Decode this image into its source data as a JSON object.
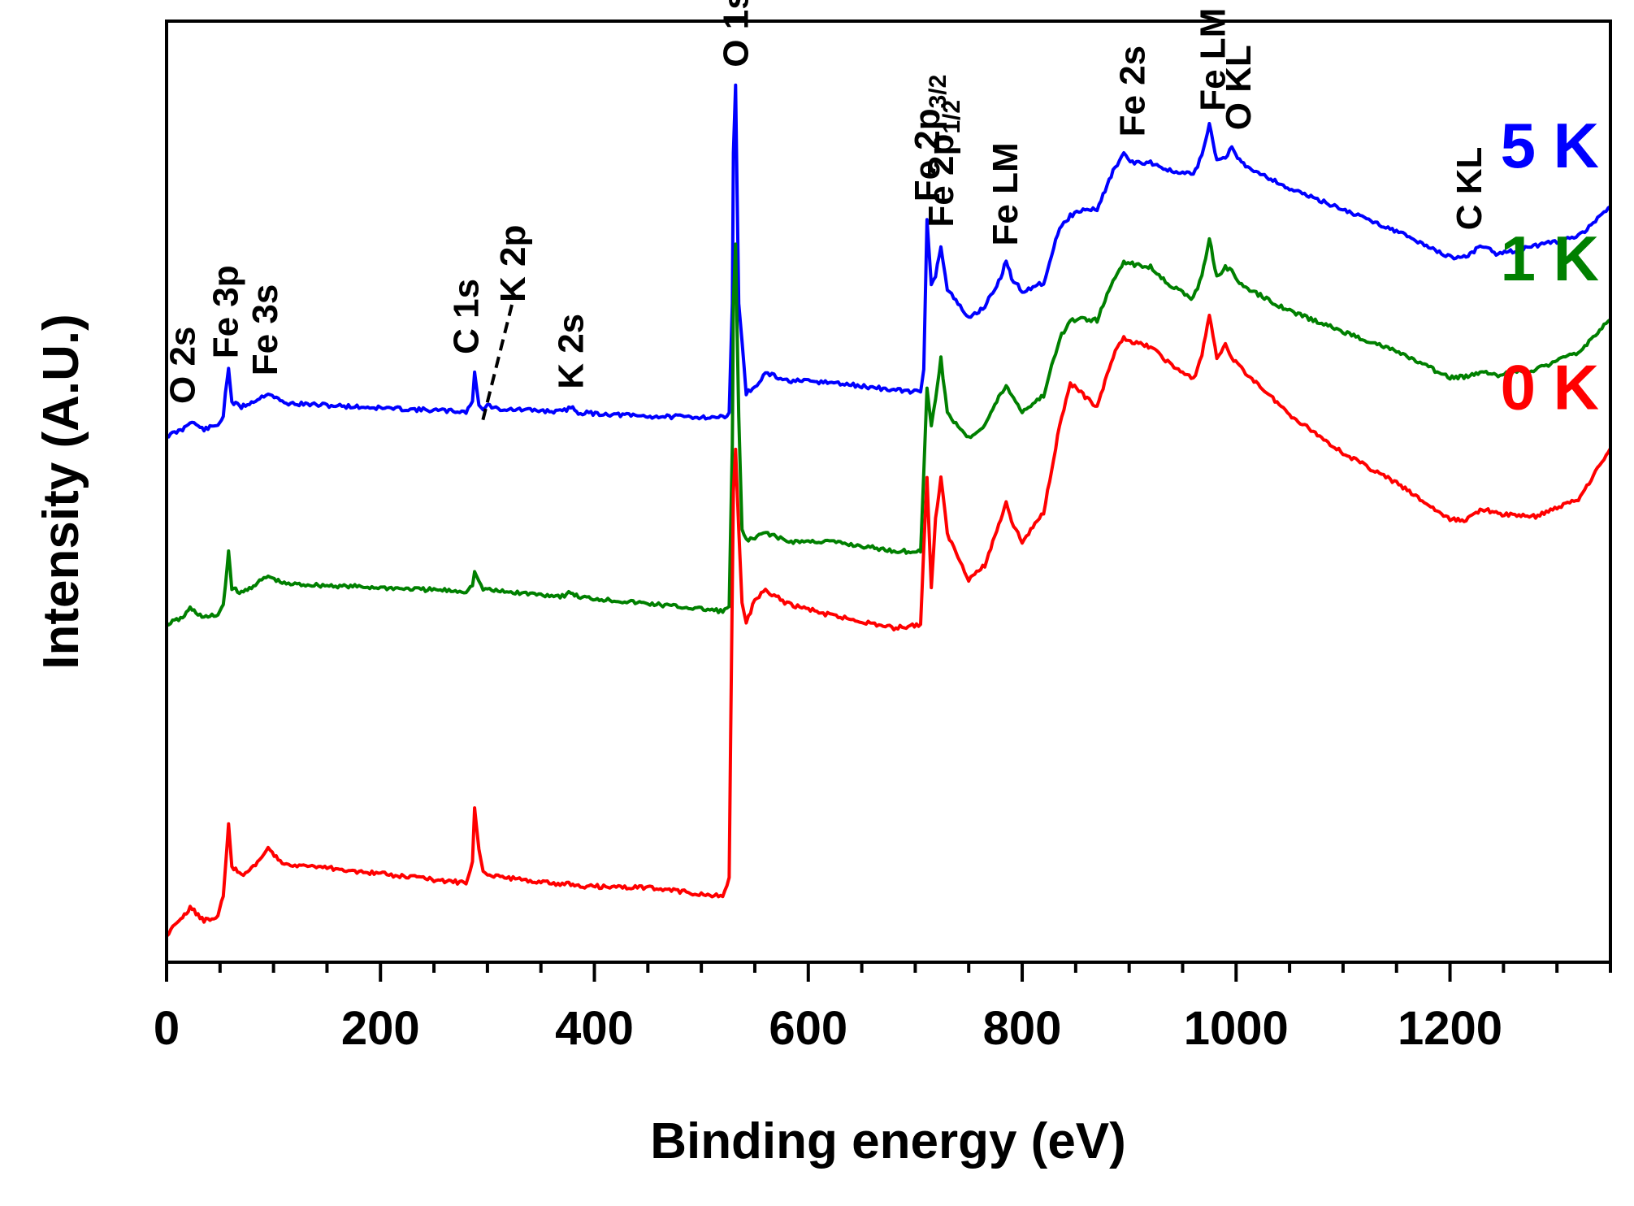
{
  "chart_data": {
    "type": "line",
    "title": "",
    "xlabel": "Binding energy (eV)",
    "ylabel": "Intensity (A.U.)",
    "xlim": [
      0,
      1350
    ],
    "ylim": [
      0,
      100
    ],
    "x_ticks": [
      0,
      200,
      400,
      600,
      800,
      1000,
      1200
    ],
    "x_tick_labels": [
      "0",
      "200",
      "400",
      "600",
      "800",
      "1000",
      "1200"
    ],
    "y_ticks_shown": false,
    "grid": false,
    "legend": "inline labels at right end of each curve",
    "series": [
      {
        "name": "5 K",
        "color": "#0000ff",
        "points": [
          [
            0,
            55.9
          ],
          [
            15,
            56.6
          ],
          [
            22,
            57.5
          ],
          [
            35,
            56.6
          ],
          [
            48,
            57.1
          ],
          [
            53,
            58.0
          ],
          [
            55,
            60.5
          ],
          [
            58,
            63.1
          ],
          [
            61,
            59.5
          ],
          [
            70,
            59.0
          ],
          [
            85,
            59.8
          ],
          [
            95,
            60.5
          ],
          [
            110,
            59.4
          ],
          [
            200,
            58.9
          ],
          [
            280,
            58.5
          ],
          [
            286,
            59.6
          ],
          [
            288,
            62.7
          ],
          [
            292,
            59.2
          ],
          [
            296,
            58.7
          ],
          [
            300,
            59.2
          ],
          [
            310,
            58.8
          ],
          [
            370,
            58.5
          ],
          [
            378,
            59.0
          ],
          [
            385,
            58.4
          ],
          [
            450,
            58.0
          ],
          [
            520,
            57.9
          ],
          [
            526,
            58.4
          ],
          [
            529,
            70
          ],
          [
            530,
            86
          ],
          [
            532,
            93.2
          ],
          [
            535,
            70
          ],
          [
            538,
            66
          ],
          [
            542,
            60.5
          ],
          [
            550,
            61.0
          ],
          [
            560,
            62.6
          ],
          [
            580,
            61.8
          ],
          [
            620,
            61.6
          ],
          [
            680,
            60.8
          ],
          [
            705,
            60.6
          ],
          [
            708,
            63
          ],
          [
            711,
            78.9
          ],
          [
            715,
            72
          ],
          [
            719,
            73
          ],
          [
            724,
            76.2
          ],
          [
            730,
            71.5
          ],
          [
            750,
            68.4
          ],
          [
            765,
            69.7
          ],
          [
            780,
            72.7
          ],
          [
            785,
            74.6
          ],
          [
            790,
            72.7
          ],
          [
            800,
            71.3
          ],
          [
            820,
            72.2
          ],
          [
            835,
            78.1
          ],
          [
            845,
            79.3
          ],
          [
            855,
            79.9
          ],
          [
            870,
            80.0
          ],
          [
            885,
            84.1
          ],
          [
            895,
            85.8
          ],
          [
            905,
            84.9
          ],
          [
            920,
            85.0
          ],
          [
            940,
            84.0
          ],
          [
            960,
            83.7
          ],
          [
            968,
            85.7
          ],
          [
            975,
            89.0
          ],
          [
            982,
            85.2
          ],
          [
            990,
            85.6
          ],
          [
            996,
            86.5
          ],
          [
            1005,
            84.9
          ],
          [
            1050,
            82.2
          ],
          [
            1100,
            80.0
          ],
          [
            1150,
            77.7
          ],
          [
            1200,
            74.9
          ],
          [
            1215,
            75.0
          ],
          [
            1230,
            76.2
          ],
          [
            1245,
            75.2
          ],
          [
            1280,
            76.1
          ],
          [
            1320,
            77.1
          ],
          [
            1350,
            80.3
          ]
        ]
      },
      {
        "name": "1 K",
        "color": "#008000",
        "points": [
          [
            0,
            35.9
          ],
          [
            15,
            36.6
          ],
          [
            22,
            37.6
          ],
          [
            35,
            36.6
          ],
          [
            48,
            36.9
          ],
          [
            53,
            38.0
          ],
          [
            55,
            40.0
          ],
          [
            58,
            43.7
          ],
          [
            61,
            39.8
          ],
          [
            70,
            39.2
          ],
          [
            85,
            40.3
          ],
          [
            95,
            41.0
          ],
          [
            110,
            40.2
          ],
          [
            200,
            39.8
          ],
          [
            280,
            39.4
          ],
          [
            286,
            40.0
          ],
          [
            288,
            41.5
          ],
          [
            292,
            40.5
          ],
          [
            296,
            39.7
          ],
          [
            310,
            39.4
          ],
          [
            370,
            38.9
          ],
          [
            378,
            39.3
          ],
          [
            385,
            38.8
          ],
          [
            450,
            38.1
          ],
          [
            520,
            37.3
          ],
          [
            526,
            37.8
          ],
          [
            529,
            55
          ],
          [
            530,
            70
          ],
          [
            532,
            76.3
          ],
          [
            535,
            58
          ],
          [
            538,
            46
          ],
          [
            542,
            44.8
          ],
          [
            550,
            45.0
          ],
          [
            560,
            45.7
          ],
          [
            580,
            44.7
          ],
          [
            620,
            44.7
          ],
          [
            680,
            43.7
          ],
          [
            705,
            43.6
          ],
          [
            708,
            52
          ],
          [
            711,
            61.0
          ],
          [
            715,
            57
          ],
          [
            719,
            60
          ],
          [
            724,
            64.1
          ],
          [
            730,
            58.3
          ],
          [
            750,
            55.7
          ],
          [
            765,
            57.1
          ],
          [
            780,
            60.4
          ],
          [
            785,
            61.2
          ],
          [
            790,
            60.3
          ],
          [
            800,
            58.5
          ],
          [
            820,
            60.2
          ],
          [
            835,
            66.3
          ],
          [
            845,
            68.1
          ],
          [
            855,
            68.4
          ],
          [
            870,
            68.2
          ],
          [
            885,
            72.4
          ],
          [
            895,
            74.5
          ],
          [
            905,
            74.1
          ],
          [
            920,
            73.9
          ],
          [
            940,
            71.8
          ],
          [
            960,
            70.5
          ],
          [
            968,
            73.0
          ],
          [
            975,
            76.9
          ],
          [
            982,
            72.8
          ],
          [
            990,
            73.9
          ],
          [
            996,
            73.4
          ],
          [
            1005,
            71.9
          ],
          [
            1050,
            69.2
          ],
          [
            1100,
            67.0
          ],
          [
            1150,
            64.9
          ],
          [
            1200,
            62.1
          ],
          [
            1215,
            62.2
          ],
          [
            1230,
            62.8
          ],
          [
            1245,
            62.4
          ],
          [
            1280,
            63.0
          ],
          [
            1320,
            64.8
          ],
          [
            1350,
            68.3
          ]
        ]
      },
      {
        "name": "0 K",
        "color": "#ff0000",
        "points": [
          [
            0,
            2.8
          ],
          [
            10,
            4.2
          ],
          [
            15,
            4.6
          ],
          [
            22,
            5.9
          ],
          [
            35,
            4.4
          ],
          [
            48,
            4.9
          ],
          [
            53,
            7.0
          ],
          [
            55,
            10.0
          ],
          [
            58,
            14.7
          ],
          [
            61,
            10.2
          ],
          [
            70,
            9.2
          ],
          [
            85,
            10.6
          ],
          [
            95,
            12.0
          ],
          [
            110,
            10.5
          ],
          [
            200,
            9.4
          ],
          [
            280,
            8.4
          ],
          [
            286,
            10.7
          ],
          [
            288,
            16.4
          ],
          [
            292,
            12.0
          ],
          [
            296,
            9.6
          ],
          [
            310,
            9.1
          ],
          [
            370,
            8.3
          ],
          [
            378,
            8.3
          ],
          [
            385,
            8.1
          ],
          [
            450,
            7.9
          ],
          [
            520,
            7.0
          ],
          [
            526,
            9.0
          ],
          [
            529,
            40
          ],
          [
            530,
            50
          ],
          [
            532,
            54.5
          ],
          [
            535,
            46
          ],
          [
            538,
            38.2
          ],
          [
            542,
            36.0
          ],
          [
            550,
            38.5
          ],
          [
            560,
            39.6
          ],
          [
            580,
            38.1
          ],
          [
            620,
            36.9
          ],
          [
            680,
            35.5
          ],
          [
            705,
            35.9
          ],
          [
            708,
            44
          ],
          [
            711,
            51.5
          ],
          [
            715,
            39.8
          ],
          [
            719,
            47
          ],
          [
            724,
            51.5
          ],
          [
            730,
            45.5
          ],
          [
            750,
            40.7
          ],
          [
            765,
            42.2
          ],
          [
            780,
            47.1
          ],
          [
            785,
            49.0
          ],
          [
            790,
            46.9
          ],
          [
            800,
            44.6
          ],
          [
            820,
            47.8
          ],
          [
            835,
            57.0
          ],
          [
            845,
            61.5
          ],
          [
            855,
            60.5
          ],
          [
            870,
            58.9
          ],
          [
            885,
            64.4
          ],
          [
            895,
            66.4
          ],
          [
            905,
            65.8
          ],
          [
            920,
            65.4
          ],
          [
            940,
            63.4
          ],
          [
            960,
            61.9
          ],
          [
            968,
            64.5
          ],
          [
            975,
            68.8
          ],
          [
            982,
            64.3
          ],
          [
            990,
            65.7
          ],
          [
            996,
            64.3
          ],
          [
            1005,
            63.1
          ],
          [
            1050,
            58.2
          ],
          [
            1100,
            54.1
          ],
          [
            1150,
            50.9
          ],
          [
            1200,
            47.0
          ],
          [
            1215,
            47.0
          ],
          [
            1230,
            48.2
          ],
          [
            1245,
            47.6
          ],
          [
            1280,
            47.4
          ],
          [
            1320,
            49.2
          ],
          [
            1350,
            54.6
          ]
        ]
      }
    ],
    "peak_annotations": [
      {
        "label": "O 2s",
        "x": 15
      },
      {
        "label": "Fe 3p",
        "x": 55
      },
      {
        "label": "Fe 3s",
        "x": 92
      },
      {
        "label": "C 1s",
        "x": 280
      },
      {
        "label": "K 2p",
        "x": 290
      },
      {
        "label": "K 2s",
        "x": 378
      },
      {
        "label": "O 1s",
        "x": 532
      },
      {
        "label": "Fe 2p",
        "sub": "3/2",
        "x": 711
      },
      {
        "label": "Fe 2p",
        "sub": "1/2",
        "x": 724
      },
      {
        "label": "Fe LM",
        "x": 784
      },
      {
        "label": "Fe 2s",
        "x": 903
      },
      {
        "label": "Fe LM",
        "x": 978
      },
      {
        "label": "O KL",
        "x": 1002
      },
      {
        "label": "C KL",
        "x": 1218
      }
    ]
  }
}
